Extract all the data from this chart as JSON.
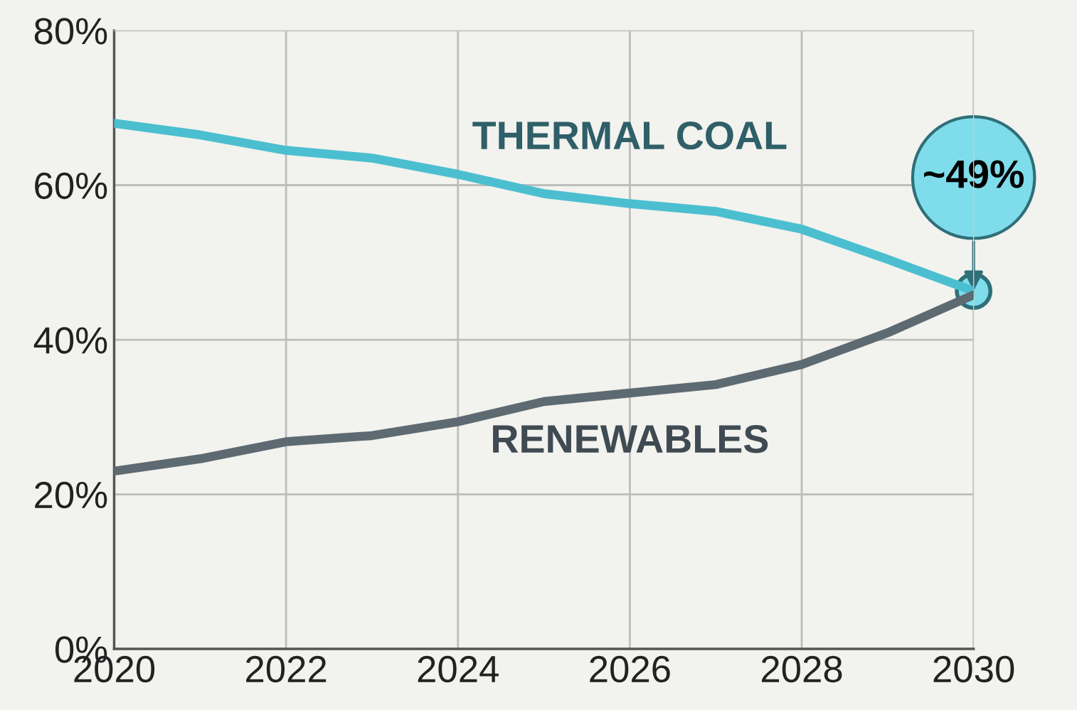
{
  "chart_data": {
    "type": "line",
    "x": [
      2020,
      2021,
      2022,
      2023,
      2024,
      2025,
      2026,
      2027,
      2028,
      2029,
      2030
    ],
    "series": [
      {
        "name": "THERMAL COAL",
        "color": "#4bbfd0",
        "values": [
          68.0,
          66.5,
          64.5,
          63.5,
          61.4,
          58.9,
          57.6,
          56.6,
          54.3,
          50.4,
          46.3
        ]
      },
      {
        "name": "RENEWABLES",
        "color": "#5e6a72",
        "values": [
          23.0,
          24.6,
          26.8,
          27.6,
          29.4,
          32.0,
          33.1,
          34.2,
          36.8,
          40.9,
          45.8
        ]
      }
    ],
    "xlim": [
      2020,
      2030
    ],
    "xticks": [
      2020,
      2022,
      2024,
      2026,
      2028,
      2030
    ],
    "ylim": [
      0,
      80
    ],
    "yticks": [
      {
        "value": 0,
        "label": "0%"
      },
      {
        "value": 20,
        "label": "20%"
      },
      {
        "value": 40,
        "label": "40%"
      },
      {
        "value": 60,
        "label": "60%"
      },
      {
        "value": 80,
        "label": "80%"
      }
    ],
    "annotations": [
      {
        "text": "~49%",
        "x": 2030,
        "y": 46.3
      }
    ],
    "grid": true,
    "marker": "none",
    "line_style": "solid"
  }
}
